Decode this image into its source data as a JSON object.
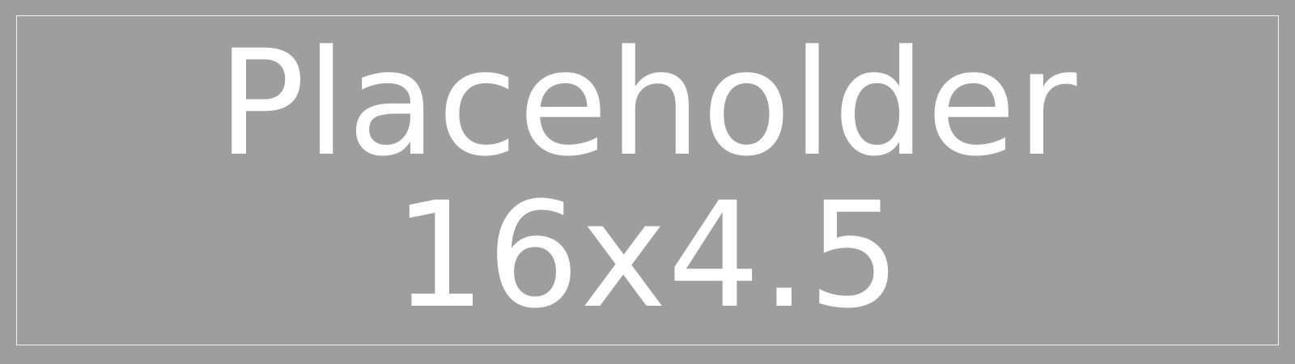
{
  "placeholder": {
    "line1": "Placeholder",
    "line2": "16x4.5"
  },
  "colors": {
    "background": "#9e9e9e",
    "text": "#ffffff",
    "border": "#f2f2f2"
  }
}
